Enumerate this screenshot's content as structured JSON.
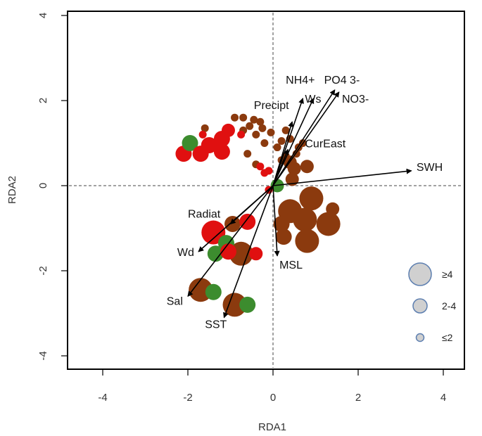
{
  "chart_data": {
    "type": "scatter",
    "title": "",
    "xlabel": "RDA1",
    "ylabel": "RDA2",
    "xlim": [
      -4.8,
      4.8
    ],
    "ylim": [
      -4.3,
      4.0
    ],
    "xticks": [
      "-4",
      "-2",
      "0",
      "2",
      "4"
    ],
    "yticks": [
      "-4",
      "-2",
      "0",
      "2",
      "4"
    ],
    "reference_lines": {
      "x": 0,
      "y": 0,
      "style": "dashed"
    },
    "colors": {
      "brown": "#8b3a0e",
      "red": "#e01010",
      "green": "#3c8c2e",
      "arrow": "#000000",
      "legend_fill": "#d0d0d0",
      "legend_stroke": "#5d7fb0"
    },
    "points": [
      {
        "x": -2.1,
        "y": 0.75,
        "c": "red",
        "s": 3
      },
      {
        "x": -1.95,
        "y": 1.0,
        "c": "green",
        "s": 3
      },
      {
        "x": -1.7,
        "y": 0.75,
        "c": "red",
        "s": 3
      },
      {
        "x": -1.5,
        "y": 0.95,
        "c": "red",
        "s": 3
      },
      {
        "x": -1.2,
        "y": 1.1,
        "c": "red",
        "s": 3
      },
      {
        "x": -1.2,
        "y": 0.8,
        "c": "red",
        "s": 3
      },
      {
        "x": -1.05,
        "y": 1.3,
        "c": "red",
        "s": 2
      },
      {
        "x": -1.6,
        "y": 1.35,
        "c": "brown",
        "s": 1
      },
      {
        "x": -1.65,
        "y": 1.2,
        "c": "red",
        "s": 1
      },
      {
        "x": -0.9,
        "y": 1.6,
        "c": "brown",
        "s": 1
      },
      {
        "x": -0.7,
        "y": 1.6,
        "c": "brown",
        "s": 1
      },
      {
        "x": -0.55,
        "y": 1.4,
        "c": "brown",
        "s": 1
      },
      {
        "x": -0.45,
        "y": 1.55,
        "c": "brown",
        "s": 1
      },
      {
        "x": -0.3,
        "y": 1.5,
        "c": "brown",
        "s": 1
      },
      {
        "x": -0.25,
        "y": 1.35,
        "c": "brown",
        "s": 1
      },
      {
        "x": -0.7,
        "y": 1.3,
        "c": "brown",
        "s": 1
      },
      {
        "x": -0.75,
        "y": 1.2,
        "c": "red",
        "s": 1
      },
      {
        "x": -0.4,
        "y": 1.2,
        "c": "brown",
        "s": 1
      },
      {
        "x": -0.05,
        "y": 1.25,
        "c": "brown",
        "s": 1
      },
      {
        "x": 0.3,
        "y": 1.3,
        "c": "brown",
        "s": 1
      },
      {
        "x": -0.2,
        "y": 1.0,
        "c": "brown",
        "s": 1
      },
      {
        "x": -0.6,
        "y": 0.75,
        "c": "brown",
        "s": 1
      },
      {
        "x": -0.4,
        "y": 0.5,
        "c": "brown",
        "s": 1
      },
      {
        "x": -0.3,
        "y": 0.45,
        "c": "red",
        "s": 1
      },
      {
        "x": -0.2,
        "y": 0.3,
        "c": "red",
        "s": 1
      },
      {
        "x": -0.1,
        "y": 0.35,
        "c": "red",
        "s": 1
      },
      {
        "x": 0.1,
        "y": 0.9,
        "c": "brown",
        "s": 1
      },
      {
        "x": 0.2,
        "y": 1.05,
        "c": "brown",
        "s": 1
      },
      {
        "x": 0.4,
        "y": 1.1,
        "c": "brown",
        "s": 1
      },
      {
        "x": 0.6,
        "y": 0.9,
        "c": "brown",
        "s": 1
      },
      {
        "x": 0.7,
        "y": 1.0,
        "c": "brown",
        "s": 1
      },
      {
        "x": 0.2,
        "y": 0.6,
        "c": "brown",
        "s": 1
      },
      {
        "x": 0.3,
        "y": 0.7,
        "c": "brown",
        "s": 1
      },
      {
        "x": 0.4,
        "y": 0.55,
        "c": "brown",
        "s": 2
      },
      {
        "x": 0.55,
        "y": 0.75,
        "c": "brown",
        "s": 1
      },
      {
        "x": 0.5,
        "y": 0.4,
        "c": "brown",
        "s": 2
      },
      {
        "x": 0.8,
        "y": 0.45,
        "c": "brown",
        "s": 2
      },
      {
        "x": 0.45,
        "y": 0.15,
        "c": "brown",
        "s": 2
      },
      {
        "x": 0.1,
        "y": 0.0,
        "c": "green",
        "s": 2
      },
      {
        "x": -0.1,
        "y": -0.1,
        "c": "red",
        "s": 1
      },
      {
        "x": 0.4,
        "y": -0.6,
        "c": "brown",
        "s": 4
      },
      {
        "x": 0.9,
        "y": -0.3,
        "c": "brown",
        "s": 4
      },
      {
        "x": 0.2,
        "y": -0.9,
        "c": "brown",
        "s": 3
      },
      {
        "x": 0.75,
        "y": -0.8,
        "c": "brown",
        "s": 4
      },
      {
        "x": 1.3,
        "y": -0.9,
        "c": "brown",
        "s": 4
      },
      {
        "x": 1.4,
        "y": -0.55,
        "c": "brown",
        "s": 2
      },
      {
        "x": 0.8,
        "y": -1.3,
        "c": "brown",
        "s": 4
      },
      {
        "x": 0.25,
        "y": -1.2,
        "c": "brown",
        "s": 3
      },
      {
        "x": -1.4,
        "y": -1.1,
        "c": "red",
        "s": 4
      },
      {
        "x": -0.95,
        "y": -0.9,
        "c": "brown",
        "s": 3
      },
      {
        "x": -0.6,
        "y": -0.85,
        "c": "red",
        "s": 3
      },
      {
        "x": -1.1,
        "y": -1.35,
        "c": "green",
        "s": 3
      },
      {
        "x": -1.35,
        "y": -1.6,
        "c": "green",
        "s": 3
      },
      {
        "x": -1.05,
        "y": -1.55,
        "c": "red",
        "s": 3
      },
      {
        "x": -0.75,
        "y": -1.6,
        "c": "brown",
        "s": 4
      },
      {
        "x": -0.4,
        "y": -1.6,
        "c": "red",
        "s": 2
      },
      {
        "x": -1.7,
        "y": -2.45,
        "c": "brown",
        "s": 4
      },
      {
        "x": -1.4,
        "y": -2.5,
        "c": "green",
        "s": 3
      },
      {
        "x": -0.9,
        "y": -2.8,
        "c": "brown",
        "s": 4
      },
      {
        "x": -0.6,
        "y": -2.8,
        "c": "green",
        "s": 3
      }
    ],
    "vectors": [
      {
        "name": "SWH",
        "x": 3.25,
        "y": 0.35,
        "lx": 3.37,
        "ly": 0.35,
        "anchor": "start"
      },
      {
        "name": "NO3-",
        "x": 1.55,
        "y": 2.2,
        "lx": 1.62,
        "ly": 1.95,
        "anchor": "start"
      },
      {
        "name": "PO4 3-",
        "x": 1.45,
        "y": 2.25,
        "lx": 1.2,
        "ly": 2.4,
        "anchor": "start"
      },
      {
        "name": "NH4+",
        "x": 0.95,
        "y": 2.05,
        "lx": 0.3,
        "ly": 2.4,
        "anchor": "start"
      },
      {
        "name": "Ws",
        "x": 0.7,
        "y": 2.05,
        "lx": 0.75,
        "ly": 1.95,
        "anchor": "start"
      },
      {
        "name": "Precipt",
        "x": 0.45,
        "y": 1.5,
        "lx": -0.45,
        "ly": 1.8,
        "anchor": "start"
      },
      {
        "name": "CurEast",
        "x": 0.35,
        "y": 0.85,
        "lx": 0.75,
        "ly": 0.9,
        "anchor": "start"
      },
      {
        "name": "MSL",
        "x": 0.1,
        "y": -1.65,
        "lx": 0.15,
        "ly": -1.95,
        "anchor": "start"
      },
      {
        "name": "Radiat",
        "x": -1.0,
        "y": -0.9,
        "lx": -2.0,
        "ly": -0.75,
        "anchor": "start"
      },
      {
        "name": "Wd",
        "x": -1.75,
        "y": -1.55,
        "lx": -2.25,
        "ly": -1.65,
        "anchor": "start"
      },
      {
        "name": "Sal",
        "x": -2.0,
        "y": -2.6,
        "lx": -2.5,
        "ly": -2.8,
        "anchor": "start"
      },
      {
        "name": "SST",
        "x": -1.15,
        "y": -3.1,
        "lx": -1.6,
        "ly": -3.35,
        "anchor": "start"
      }
    ],
    "legend": {
      "placement": "bottom-right",
      "entries": [
        {
          "label": "≥4",
          "s": 4
        },
        {
          "label": "2-4",
          "s": 2
        },
        {
          "label": "≤2",
          "s": 1
        }
      ]
    }
  }
}
